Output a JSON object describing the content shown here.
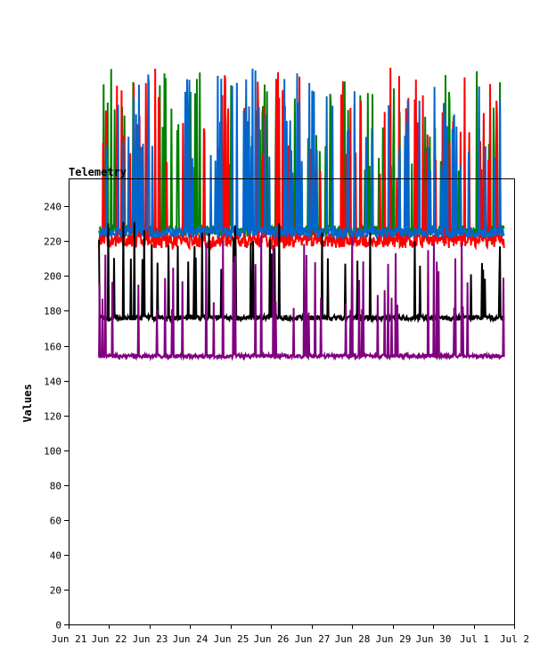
{
  "chart_data": {
    "type": "line",
    "title": "Telemetry",
    "xlabel": "",
    "ylabel": "Values",
    "ylim": [
      0,
      256
    ],
    "xlim": [
      "Jun 21",
      "Jul 2"
    ],
    "yticks": [
      0,
      20,
      40,
      60,
      80,
      100,
      120,
      140,
      160,
      180,
      200,
      220,
      240
    ],
    "xticks": [
      "Jun 21",
      "Jun 22",
      "Jun 23",
      "Jun 24",
      "Jun 25",
      "Jun 26",
      "Jun 27",
      "Jun 28",
      "Jun 29",
      "Jun 30",
      "Jul 1",
      "Jul 2"
    ],
    "grid": false,
    "legend": "none",
    "series": [
      {
        "color": "#008000",
        "baseline": 226,
        "noise": 3,
        "spike_rate": 0.12,
        "spike_peak": 320,
        "spike_dir": "up",
        "x_start": "2024-06-21T18:00",
        "x_end": "2024-07-01T18:00"
      },
      {
        "color": "#ff0000",
        "baseline": 220,
        "noise": 4,
        "spike_rate": 0.14,
        "spike_peak": 320,
        "spike_dir": "up",
        "x_start": "2024-06-21T18:00",
        "x_end": "2024-07-01T18:00"
      },
      {
        "color": "#0066cc",
        "baseline": 225,
        "noise": 3,
        "spike_rate": 0.12,
        "spike_peak": 320,
        "spike_dir": "up",
        "x_start": "2024-06-21T18:00",
        "x_end": "2024-07-01T18:00"
      },
      {
        "color": "#000000",
        "baseline": 176,
        "noise": 1.5,
        "spike_rate": 0.06,
        "spike_peak": 235,
        "spike_dir": "up",
        "x_start": "2024-06-21T18:00",
        "x_end": "2024-07-01T18:00"
      },
      {
        "color": "#800080",
        "baseline": 154,
        "noise": 1.2,
        "spike_rate": 0.07,
        "spike_peak": 225,
        "spike_dir": "up",
        "x_start": "2024-06-21T18:00",
        "x_end": "2024-07-01T18:00"
      }
    ]
  }
}
